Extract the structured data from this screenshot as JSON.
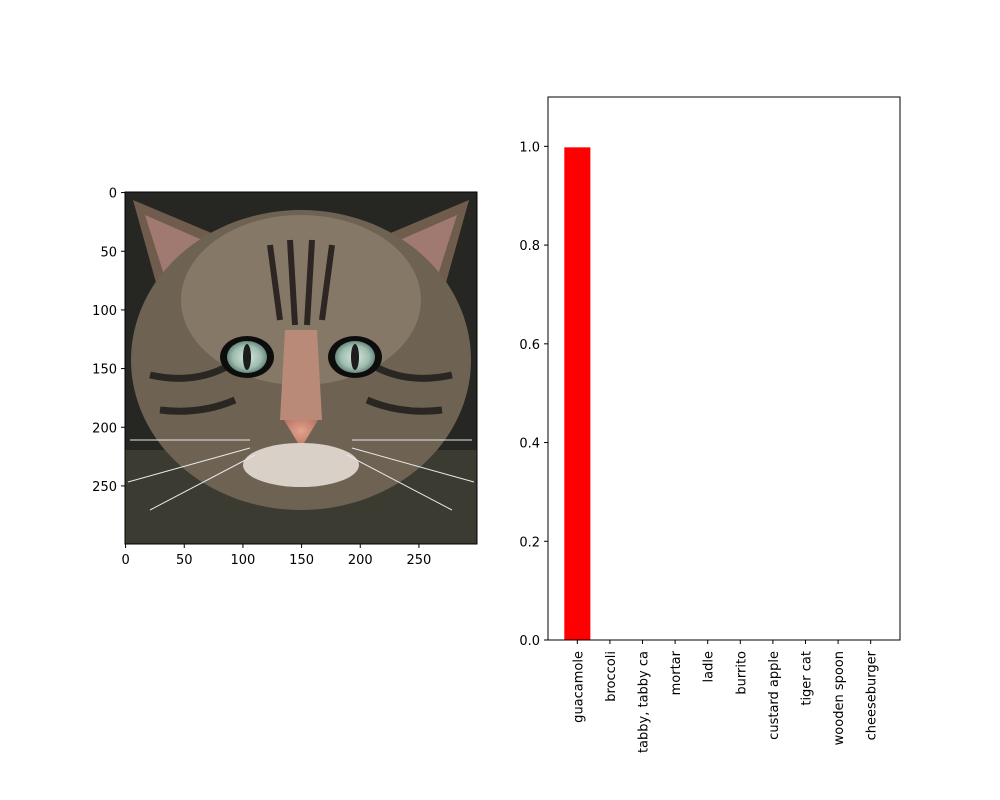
{
  "chart_data": [
    {
      "type": "image",
      "image_subject": "tabby cat face with visible noise",
      "xlim": [
        0,
        299
      ],
      "ylim": [
        299,
        0
      ],
      "x_ticks": [
        "0",
        "50",
        "100",
        "150",
        "200",
        "250"
      ],
      "y_ticks": [
        "0",
        "50",
        "100",
        "150",
        "200",
        "250"
      ]
    },
    {
      "type": "bar",
      "categories": [
        "guacamole",
        "broccoli",
        "tabby, tabby ca",
        "mortar",
        "ladle",
        "burrito",
        "custard apple",
        "tiger cat",
        "wooden spoon",
        "cheeseburger"
      ],
      "values": [
        0.998,
        0.0003,
        0.0004,
        0.0002,
        0.0001,
        0.0001,
        0.0001,
        0.0001,
        0.0001,
        0.0001
      ],
      "ylim": [
        0,
        1.1
      ],
      "y_ticks": [
        "0.0",
        "0.2",
        "0.4",
        "0.6",
        "0.8",
        "1.0"
      ],
      "bar_color": "#ff0000",
      "grid": false,
      "legend": "none"
    }
  ]
}
